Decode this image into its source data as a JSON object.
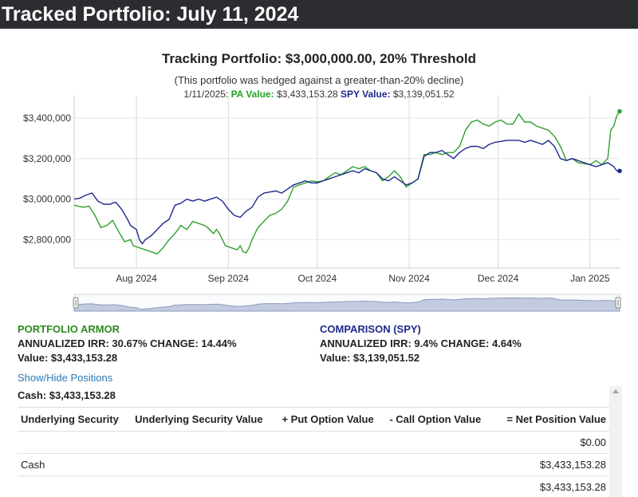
{
  "header": {
    "title": "Tracked Portfolio: July 11, 2024"
  },
  "chart_data": {
    "type": "line",
    "title": "Tracking Portfolio: $3,000,000.00, 20% Threshold",
    "subtitle": "(This portfolio was hedged against a greater-than-20% decline)",
    "tooltip": {
      "date": "1/11/2025:",
      "pa_label": "PA Value:",
      "pa_value": "$3,433,153.28",
      "spy_label": "SPY Value:",
      "spy_value": "$3,139,051.52"
    },
    "xlabel": "",
    "ylabel": "",
    "x_tick_labels": [
      "Aug 2024",
      "Sep 2024",
      "Oct 2024",
      "Nov 2024",
      "Dec 2024",
      "Jan 2025"
    ],
    "x_tick_days": [
      21,
      52,
      82,
      113,
      143,
      174
    ],
    "y_tick_labels": [
      "$2,800,000",
      "$3,000,000",
      "$3,200,000",
      "$3,400,000"
    ],
    "y_ticks": [
      2800000,
      3000000,
      3200000,
      3400000
    ],
    "ylim": [
      2660000,
      3510000
    ],
    "xlim": [
      0,
      184
    ],
    "series": [
      {
        "name": "PA Value",
        "color": "#2ea02e",
        "points": [
          [
            0,
            2970000
          ],
          [
            3,
            2960000
          ],
          [
            5,
            2965000
          ],
          [
            7,
            2920000
          ],
          [
            9,
            2860000
          ],
          [
            11,
            2870000
          ],
          [
            13,
            2895000
          ],
          [
            15,
            2840000
          ],
          [
            17,
            2790000
          ],
          [
            19,
            2800000
          ],
          [
            20,
            2770000
          ],
          [
            22,
            2760000
          ],
          [
            24,
            2750000
          ],
          [
            26,
            2740000
          ],
          [
            28,
            2730000
          ],
          [
            30,
            2760000
          ],
          [
            32,
            2800000
          ],
          [
            34,
            2830000
          ],
          [
            36,
            2870000
          ],
          [
            38,
            2850000
          ],
          [
            40,
            2890000
          ],
          [
            42,
            2880000
          ],
          [
            44,
            2870000
          ],
          [
            45,
            2860000
          ],
          [
            47,
            2830000
          ],
          [
            48,
            2850000
          ],
          [
            49,
            2830000
          ],
          [
            51,
            2770000
          ],
          [
            53,
            2760000
          ],
          [
            55,
            2750000
          ],
          [
            56,
            2770000
          ],
          [
            57,
            2740000
          ],
          [
            58,
            2735000
          ],
          [
            59,
            2760000
          ],
          [
            60,
            2800000
          ],
          [
            62,
            2860000
          ],
          [
            64,
            2890000
          ],
          [
            66,
            2920000
          ],
          [
            68,
            2930000
          ],
          [
            70,
            2950000
          ],
          [
            72,
            2990000
          ],
          [
            74,
            3060000
          ],
          [
            76,
            3070000
          ],
          [
            78,
            3080000
          ],
          [
            80,
            3090000
          ],
          [
            82,
            3085000
          ],
          [
            84,
            3090000
          ],
          [
            86,
            3110000
          ],
          [
            88,
            3130000
          ],
          [
            90,
            3120000
          ],
          [
            92,
            3140000
          ],
          [
            94,
            3160000
          ],
          [
            96,
            3150000
          ],
          [
            98,
            3160000
          ],
          [
            100,
            3140000
          ],
          [
            102,
            3130000
          ],
          [
            104,
            3090000
          ],
          [
            106,
            3110000
          ],
          [
            108,
            3140000
          ],
          [
            110,
            3110000
          ],
          [
            112,
            3060000
          ],
          [
            114,
            3080000
          ],
          [
            116,
            3100000
          ],
          [
            118,
            3220000
          ],
          [
            120,
            3220000
          ],
          [
            122,
            3230000
          ],
          [
            124,
            3220000
          ],
          [
            126,
            3230000
          ],
          [
            128,
            3230000
          ],
          [
            130,
            3260000
          ],
          [
            132,
            3340000
          ],
          [
            134,
            3380000
          ],
          [
            136,
            3390000
          ],
          [
            138,
            3370000
          ],
          [
            140,
            3360000
          ],
          [
            142,
            3380000
          ],
          [
            144,
            3390000
          ],
          [
            146,
            3370000
          ],
          [
            148,
            3370000
          ],
          [
            150,
            3420000
          ],
          [
            152,
            3380000
          ],
          [
            154,
            3380000
          ],
          [
            156,
            3360000
          ],
          [
            158,
            3350000
          ],
          [
            160,
            3340000
          ],
          [
            162,
            3310000
          ],
          [
            164,
            3260000
          ],
          [
            166,
            3190000
          ],
          [
            168,
            3200000
          ],
          [
            170,
            3180000
          ],
          [
            172,
            3175000
          ],
          [
            174,
            3170000
          ],
          [
            176,
            3190000
          ],
          [
            178,
            3170000
          ],
          [
            180,
            3200000
          ],
          [
            181,
            3340000
          ],
          [
            182,
            3360000
          ],
          [
            183,
            3410000
          ],
          [
            184,
            3433153
          ]
        ]
      },
      {
        "name": "SPY Value",
        "color": "#1d2a8c",
        "points": [
          [
            0,
            3000000
          ],
          [
            2,
            3005000
          ],
          [
            4,
            3020000
          ],
          [
            6,
            3030000
          ],
          [
            8,
            2990000
          ],
          [
            10,
            2975000
          ],
          [
            12,
            2975000
          ],
          [
            14,
            2985000
          ],
          [
            16,
            2950000
          ],
          [
            18,
            2900000
          ],
          [
            19,
            2870000
          ],
          [
            21,
            2850000
          ],
          [
            22,
            2800000
          ],
          [
            23,
            2780000
          ],
          [
            24,
            2800000
          ],
          [
            26,
            2820000
          ],
          [
            28,
            2850000
          ],
          [
            30,
            2880000
          ],
          [
            32,
            2900000
          ],
          [
            34,
            2970000
          ],
          [
            36,
            2980000
          ],
          [
            38,
            3000000
          ],
          [
            40,
            2990000
          ],
          [
            42,
            3000000
          ],
          [
            44,
            2990000
          ],
          [
            46,
            3000000
          ],
          [
            48,
            3010000
          ],
          [
            50,
            2990000
          ],
          [
            52,
            2950000
          ],
          [
            54,
            2920000
          ],
          [
            56,
            2910000
          ],
          [
            58,
            2940000
          ],
          [
            60,
            2960000
          ],
          [
            62,
            3010000
          ],
          [
            64,
            3030000
          ],
          [
            66,
            3035000
          ],
          [
            68,
            3040000
          ],
          [
            70,
            3030000
          ],
          [
            72,
            3050000
          ],
          [
            74,
            3070000
          ],
          [
            76,
            3080000
          ],
          [
            78,
            3090000
          ],
          [
            80,
            3080000
          ],
          [
            82,
            3080000
          ],
          [
            84,
            3090000
          ],
          [
            86,
            3100000
          ],
          [
            88,
            3110000
          ],
          [
            90,
            3120000
          ],
          [
            92,
            3130000
          ],
          [
            94,
            3140000
          ],
          [
            96,
            3130000
          ],
          [
            98,
            3150000
          ],
          [
            100,
            3140000
          ],
          [
            102,
            3130000
          ],
          [
            104,
            3100000
          ],
          [
            106,
            3090000
          ],
          [
            108,
            3110000
          ],
          [
            110,
            3090000
          ],
          [
            112,
            3070000
          ],
          [
            114,
            3080000
          ],
          [
            116,
            3100000
          ],
          [
            118,
            3210000
          ],
          [
            120,
            3230000
          ],
          [
            122,
            3230000
          ],
          [
            124,
            3240000
          ],
          [
            126,
            3220000
          ],
          [
            128,
            3200000
          ],
          [
            130,
            3230000
          ],
          [
            132,
            3250000
          ],
          [
            134,
            3260000
          ],
          [
            136,
            3260000
          ],
          [
            138,
            3250000
          ],
          [
            140,
            3270000
          ],
          [
            142,
            3280000
          ],
          [
            144,
            3285000
          ],
          [
            146,
            3290000
          ],
          [
            148,
            3290000
          ],
          [
            150,
            3290000
          ],
          [
            152,
            3280000
          ],
          [
            154,
            3290000
          ],
          [
            156,
            3280000
          ],
          [
            158,
            3270000
          ],
          [
            160,
            3290000
          ],
          [
            162,
            3260000
          ],
          [
            164,
            3200000
          ],
          [
            166,
            3190000
          ],
          [
            168,
            3200000
          ],
          [
            170,
            3190000
          ],
          [
            172,
            3180000
          ],
          [
            174,
            3170000
          ],
          [
            176,
            3160000
          ],
          [
            178,
            3170000
          ],
          [
            180,
            3180000
          ],
          [
            181,
            3170000
          ],
          [
            182,
            3160000
          ],
          [
            183,
            3140000
          ],
          [
            184,
            3139052
          ]
        ]
      }
    ]
  },
  "portfolio_armor": {
    "title": "PORTFOLIO ARMOR",
    "irr_line": "ANNUALIZED IRR: 30.67% CHANGE: 14.44%",
    "value_line": "Value: $3,433,153.28"
  },
  "comparison": {
    "title": "COMPARISON (SPY)",
    "irr_line": "ANNUALIZED IRR: 9.4% CHANGE: 4.64%",
    "value_line": "Value: $3,139,051.52"
  },
  "positions": {
    "toggle_label": "Show/Hide Positions",
    "cash_line": "Cash: $3,433,153.28",
    "columns": [
      "Underlying Security",
      "Underlying Security Value",
      "+ Put Option Value",
      "- Call Option Value",
      "= Net Position Value"
    ],
    "rows": [
      [
        "",
        "",
        "",
        "",
        "$0.00"
      ],
      [
        "Cash",
        "",
        "",
        "",
        "$3,433,153.28"
      ],
      [
        "",
        "",
        "",
        "",
        "$3,433,153.28"
      ]
    ]
  }
}
